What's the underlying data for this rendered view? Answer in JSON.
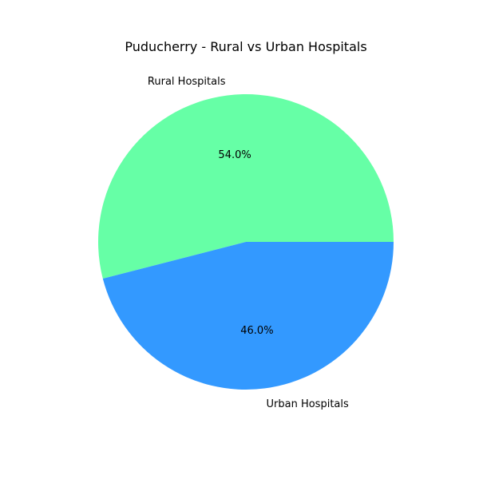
{
  "chart_data": {
    "type": "pie",
    "title": "Puducherry - Rural vs Urban Hospitals",
    "categories": [
      "Rural Hospitals",
      "Urban Hospitals"
    ],
    "values": [
      54.0,
      46.0
    ],
    "percent_labels": [
      "54.0%",
      "46.0%"
    ],
    "colors": [
      "#66ffa6",
      "#3399ff"
    ],
    "start_angle_deg": 0,
    "direction": "counterclockwise",
    "legend": "none"
  }
}
